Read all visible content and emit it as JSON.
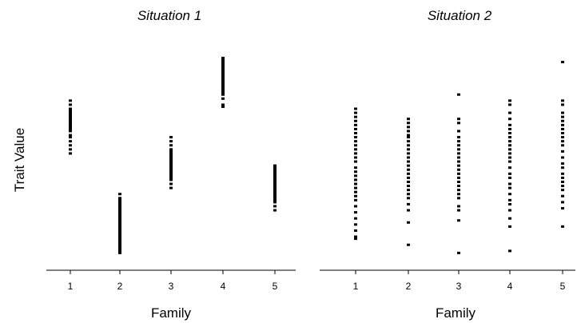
{
  "chart_data": [
    {
      "type": "scatter",
      "title": "Situation 1",
      "xlabel": "Family",
      "ylabel": "Trait Value",
      "categories": [
        "1",
        "2",
        "3",
        "4",
        "5"
      ],
      "x_tick_labels": [
        "1",
        "2",
        "3",
        "4",
        "5"
      ],
      "ylim": [
        0,
        100
      ],
      "grid": false,
      "legend": "none",
      "points": {
        "1": [
          78,
          76,
          74,
          73,
          72,
          71,
          70,
          69,
          68,
          67,
          66,
          65,
          64,
          63,
          61,
          60,
          58,
          56,
          54,
          52
        ],
        "2": [
          32,
          30,
          29,
          28,
          27,
          26,
          25,
          24,
          23,
          22,
          21,
          20,
          19,
          18,
          17,
          16,
          15,
          14,
          13,
          12,
          11,
          10,
          9,
          8,
          7,
          6,
          5,
          4,
          3
        ],
        "3": [
          60,
          58,
          56,
          54,
          53,
          52,
          51,
          50,
          49,
          48,
          47,
          46,
          45,
          44,
          43,
          42,
          41,
          40,
          39,
          37,
          35
        ],
        "4": [
          99,
          98,
          97,
          96,
          95,
          94,
          93,
          92,
          91,
          90,
          89,
          88,
          87,
          86,
          85,
          84,
          83,
          82,
          81,
          79,
          76,
          75
        ],
        "5": [
          46,
          45,
          44,
          43,
          42,
          41,
          40,
          39,
          38,
          37,
          36,
          35,
          34,
          33,
          32,
          31,
          30,
          29,
          28,
          26,
          24
        ]
      }
    },
    {
      "type": "scatter",
      "title": "Situation 2",
      "xlabel": "Family",
      "ylabel": "",
      "categories": [
        "1",
        "2",
        "3",
        "4",
        "5"
      ],
      "x_tick_labels": [
        "1",
        "2",
        "3",
        "4",
        "5"
      ],
      "ylim": [
        0,
        100
      ],
      "grid": false,
      "legend": "none",
      "points": {
        "1": [
          74,
          72,
          70,
          68,
          66,
          64,
          62,
          60,
          58,
          56,
          54,
          52,
          50,
          48,
          45,
          43,
          41,
          39,
          37,
          35,
          33,
          31,
          29,
          26,
          23,
          20,
          17,
          14,
          11,
          10
        ],
        "2": [
          69,
          67,
          65,
          63,
          61,
          60,
          58,
          56,
          54,
          52,
          50,
          48,
          46,
          44,
          42,
          40,
          38,
          36,
          34,
          32,
          30,
          27,
          24,
          18,
          7
        ],
        "3": [
          81,
          69,
          67,
          63,
          60,
          58,
          56,
          54,
          52,
          50,
          48,
          46,
          44,
          42,
          40,
          38,
          36,
          34,
          32,
          30,
          26,
          24,
          19,
          3
        ],
        "4": [
          78,
          76,
          72,
          69,
          66,
          64,
          62,
          60,
          58,
          56,
          54,
          52,
          50,
          48,
          45,
          42,
          40,
          37,
          35,
          32,
          29,
          27,
          24,
          20,
          16,
          4
        ],
        "5": [
          97,
          78,
          76,
          72,
          70,
          68,
          66,
          64,
          62,
          60,
          58,
          56,
          53,
          50,
          47,
          45,
          42,
          40,
          38,
          36,
          34,
          31,
          28,
          25,
          16
        ]
      }
    }
  ]
}
